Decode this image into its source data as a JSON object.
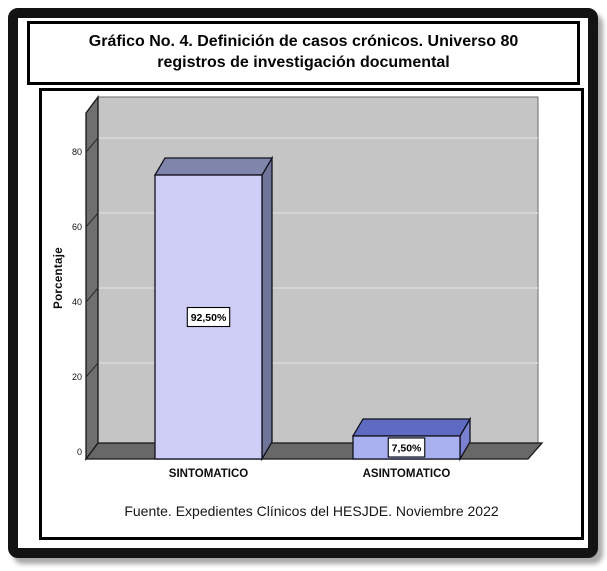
{
  "title": "Gráfico No. 4. Definición de casos crónicos. Universo 80 registros de investigación documental",
  "colors": {
    "frame": "#131313",
    "wall": "#c5c5c5",
    "wall_grid": "#d9d9d9",
    "side_wall": "#6f6f6f",
    "floor": "#686868",
    "bars": [
      {
        "front": "#cecdf6",
        "top": "#7f85ab",
        "side": "#6f7499"
      },
      {
        "front": "#a8b0f0",
        "top": "#5f6ac2",
        "side": "#7a82d0"
      }
    ]
  },
  "chart_data": {
    "type": "bar",
    "projection": "3d",
    "title": "Gráfico No. 4. Definición de casos crónicos. Universo 80 registros de investigación documental",
    "categories": [
      "SINTOMATICO",
      "ASINTOMATICO"
    ],
    "values": [
      92.5,
      7.5
    ],
    "value_labels": [
      "92,50%",
      "7,50%"
    ],
    "xlabel": "",
    "ylabel": "Porcentaje",
    "yticks": [
      0,
      20,
      40,
      60,
      80
    ],
    "ylim": [
      0,
      100
    ],
    "grid": true,
    "legend": false,
    "source_note": "Fuente. Expedientes Clínicos del HESJDE. Noviembre 2022"
  }
}
